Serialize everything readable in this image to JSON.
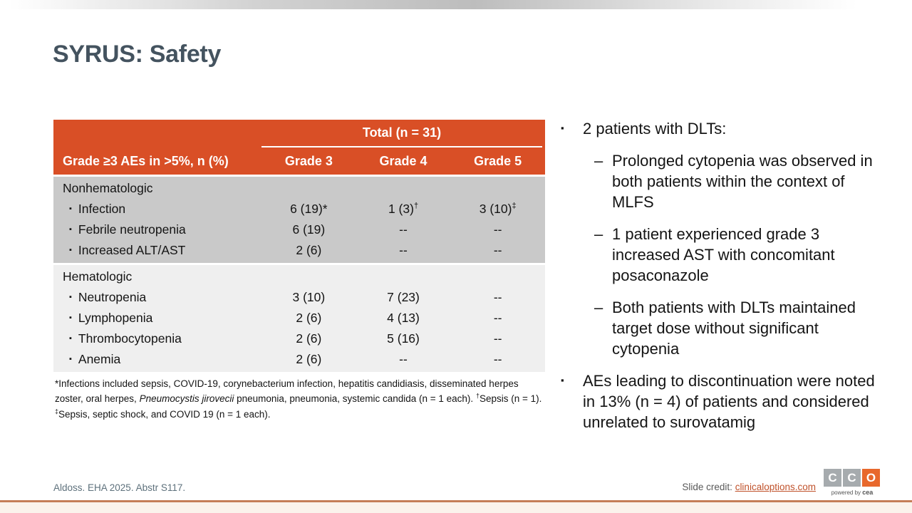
{
  "title": "SYRUS: Safety",
  "colors": {
    "header_orange": "#D94F26",
    "title_slate": "#44535F",
    "section_gray": "#C9C9C9",
    "section_light": "#EFEFEF",
    "link_orange": "#C0522B",
    "logo_gray": "#A6ABAE",
    "logo_orange": "#E8682C",
    "bottom_line_salmon": "#C57E58"
  },
  "table": {
    "total_header": "Total (n = 31)",
    "col_label": "Grade ≥3 AEs in >5%, n (%)",
    "columns": [
      "Grade 3",
      "Grade 4",
      "Grade 5"
    ],
    "sections": [
      {
        "name": "Nonhematologic",
        "rows": [
          {
            "label": "Infection",
            "cells": [
              {
                "v": "6 (19)*"
              },
              {
                "v": "1 (3)",
                "sup": "†"
              },
              {
                "v": "3 (10)",
                "sup": "‡"
              }
            ]
          },
          {
            "label": "Febrile neutropenia",
            "cells": [
              {
                "v": "6 (19)"
              },
              {
                "v": "--"
              },
              {
                "v": "--"
              }
            ]
          },
          {
            "label": "Increased ALT/AST",
            "cells": [
              {
                "v": "2 (6)"
              },
              {
                "v": "--"
              },
              {
                "v": "--"
              }
            ]
          }
        ]
      },
      {
        "name": "Hematologic",
        "rows": [
          {
            "label": "Neutropenia",
            "cells": [
              {
                "v": "3 (10)"
              },
              {
                "v": "7 (23)"
              },
              {
                "v": "--"
              }
            ]
          },
          {
            "label": "Lymphopenia",
            "cells": [
              {
                "v": "2 (6)"
              },
              {
                "v": "4 (13)"
              },
              {
                "v": "--"
              }
            ]
          },
          {
            "label": "Thrombocytopenia",
            "cells": [
              {
                "v": "2 (6)"
              },
              {
                "v": "5 (16)"
              },
              {
                "v": "--"
              }
            ]
          },
          {
            "label": "Anemia",
            "cells": [
              {
                "v": "2 (6)"
              },
              {
                "v": "--"
              },
              {
                "v": "--"
              }
            ]
          }
        ]
      }
    ]
  },
  "footnote_segments": [
    {
      "t": "*Infections included sepsis, COVID-19, corynebacterium infection, hepatitis candidiasis, disseminated herpes zoster, oral herpes, "
    },
    {
      "t": "Pneumocystis jirovecii",
      "style": "i"
    },
    {
      "t": " pneumonia, pneumonia, systemic candida (n = 1 each). "
    },
    {
      "t": "†",
      "style": "sup"
    },
    {
      "t": "Sepsis (n = 1). "
    },
    {
      "t": "‡",
      "style": "sup"
    },
    {
      "t": "Sepsis, septic shock, and COVID 19 (n = 1 each)."
    }
  ],
  "bullets": [
    {
      "text": "2 patients with DLTs:",
      "subs": [
        "Prolonged cytopenia was observed in both patients within the context of MLFS",
        "1 patient experienced grade 3 increased AST with concomitant posaconazole",
        "Both patients with DLTs maintained target dose without significant cytopenia"
      ]
    },
    {
      "text": "AEs leading to discontinuation were noted in 13% (n = 4) of patients and considered unrelated to surovatamig",
      "subs": []
    }
  ],
  "footer": {
    "citation": "Aldoss. EHA 2025. Abstr S117.",
    "credit_label": "Slide credit: ",
    "credit_link": "clinicaloptions.com",
    "logo": {
      "letters": [
        "C",
        "C",
        "O"
      ],
      "caption_prefix": "powered by ",
      "caption_brand": "cea"
    }
  }
}
